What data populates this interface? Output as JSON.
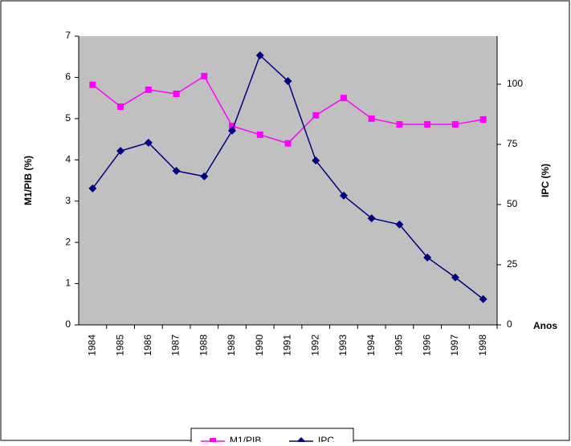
{
  "chart_data": {
    "type": "line",
    "categories": [
      "1984",
      "1985",
      "1986",
      "1987",
      "1988",
      "1989",
      "1990",
      "1991",
      "1992",
      "1993",
      "1994",
      "1995",
      "1996",
      "1997",
      "1998"
    ],
    "series": [
      {
        "name": "M1/PIB",
        "color": "#ff00ff",
        "marker": "square",
        "values": [
          5.82,
          5.29,
          5.7,
          5.6,
          6.03,
          4.82,
          4.61,
          4.4,
          5.08,
          5.5,
          5.0,
          4.86,
          4.86,
          4.86,
          4.98
        ]
      },
      {
        "name": "IPC",
        "color": "#000080",
        "marker": "diamond",
        "axis": "y2",
        "values": [
          56.7,
          72.3,
          75.7,
          64,
          61.7,
          80.7,
          112,
          101.3,
          68.3,
          53.7,
          44.3,
          41.7,
          28,
          19.7,
          10.7
        ]
      }
    ],
    "ylabel": "M1/PIB (%)",
    "y2label": "IPC (%)",
    "xlabel": "Anos",
    "ylim": [
      0,
      7
    ],
    "yticks": [
      0,
      1,
      2,
      3,
      4,
      5,
      6,
      7
    ],
    "y2lim": [
      0,
      120
    ],
    "y2ticks": [
      0,
      25,
      50,
      75,
      100
    ],
    "background": "#c0c0c0",
    "legend": "bottom"
  }
}
